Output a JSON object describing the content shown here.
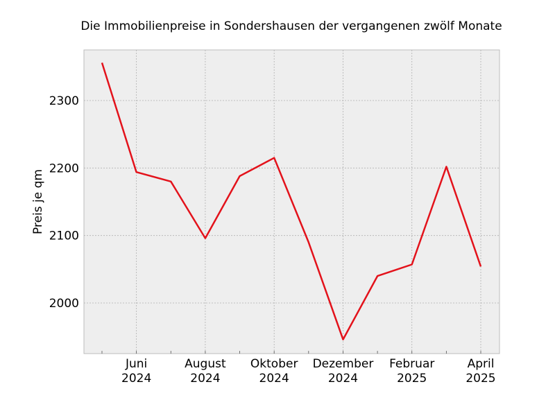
{
  "chart_data": {
    "type": "line",
    "title": "Die Immobilienpreise in Sondershausen der vergangenen zwölf Monate",
    "xlabel": "",
    "ylabel": "Preis je qm",
    "x": [
      "2024-05",
      "2024-06",
      "2024-07",
      "2024-08",
      "2024-09",
      "2024-10",
      "2024-11",
      "2024-12",
      "2025-01",
      "2025-02",
      "2025-03",
      "2025-04"
    ],
    "x_tick_labels": [
      {
        "x": "2024-06",
        "month": "Juni",
        "year": "2024"
      },
      {
        "x": "2024-08",
        "month": "August",
        "year": "2024"
      },
      {
        "x": "2024-10",
        "month": "Oktober",
        "year": "2024"
      },
      {
        "x": "2024-12",
        "month": "Dezember",
        "year": "2024"
      },
      {
        "x": "2025-02",
        "month": "Februar",
        "year": "2025"
      },
      {
        "x": "2025-04",
        "month": "April",
        "year": "2025"
      }
    ],
    "y_ticks": [
      2000,
      2100,
      2200,
      2300
    ],
    "ylim": [
      1925,
      2375
    ],
    "series": [
      {
        "values": [
          2356,
          2194,
          2180,
          2096,
          2188,
          2215,
          2090,
          1946,
          2040,
          2057,
          2202,
          2054
        ],
        "color": "#e3121b"
      }
    ],
    "grid": true,
    "background": "#eeeeee"
  }
}
